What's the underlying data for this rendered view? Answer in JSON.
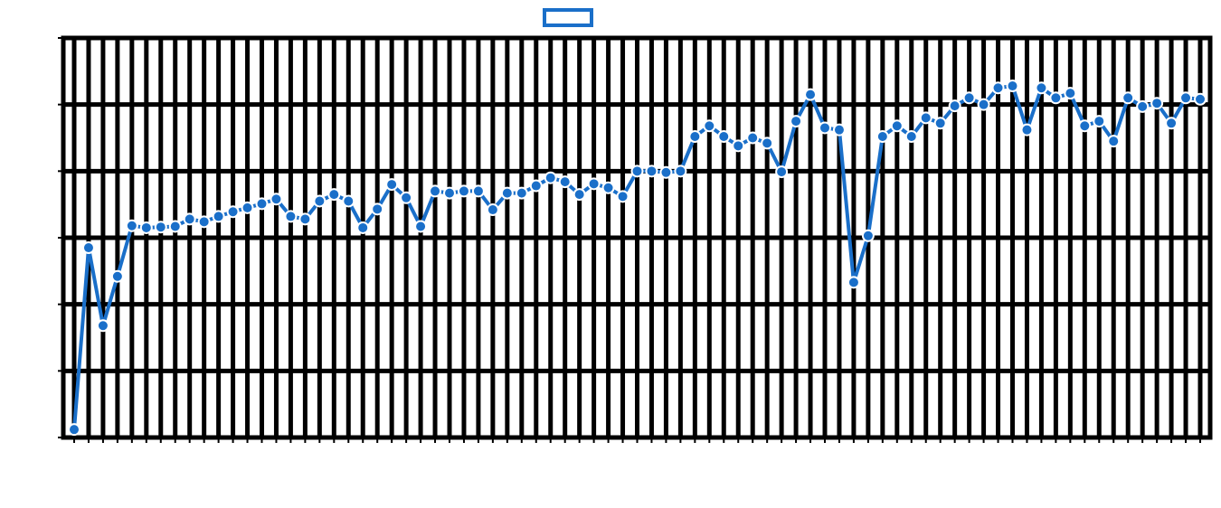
{
  "chart_data": {
    "type": "line",
    "title": "",
    "xlabel": "",
    "ylabel": "",
    "ylim": [
      0,
      6
    ],
    "y_ticks": [
      0,
      1,
      2,
      3,
      4,
      5,
      6
    ],
    "y_tick_labels": [
      "",
      "",
      "",
      "",
      "",
      "",
      ""
    ],
    "x_tick_labels": [
      "",
      "",
      "",
      "",
      "",
      "",
      "",
      "",
      "",
      "",
      "",
      "",
      "",
      "",
      "",
      "",
      "",
      "",
      "",
      "",
      "",
      "",
      "",
      "",
      "",
      "",
      "",
      "",
      "",
      "",
      "",
      "",
      "",
      "",
      "",
      "",
      "",
      "",
      "",
      "",
      "",
      "",
      "",
      "",
      "",
      "",
      "",
      "",
      "",
      "",
      "",
      "",
      "",
      "",
      "",
      "",
      "",
      "",
      "",
      "",
      "",
      "",
      "",
      "",
      "",
      "",
      "",
      "",
      "",
      "",
      "",
      "",
      "",
      "",
      "",
      "",
      "",
      "",
      "",
      ""
    ],
    "grid": true,
    "legend_position": "top-center",
    "series": [
      {
        "color": "#1a6fc9",
        "values": [
          0.12,
          2.85,
          1.68,
          2.42,
          3.18,
          3.15,
          3.16,
          3.17,
          3.28,
          3.24,
          3.32,
          3.39,
          3.45,
          3.51,
          3.58,
          3.32,
          3.28,
          3.55,
          3.65,
          3.55,
          3.15,
          3.43,
          3.8,
          3.6,
          3.17,
          3.7,
          3.67,
          3.7,
          3.7,
          3.42,
          3.67,
          3.67,
          3.78,
          3.9,
          3.84,
          3.65,
          3.81,
          3.75,
          3.62,
          4.0,
          4.0,
          3.98,
          4.0,
          4.52,
          4.68,
          4.52,
          4.38,
          4.5,
          4.42,
          3.99,
          4.75,
          5.15,
          4.65,
          4.62,
          2.33,
          3.03,
          4.52,
          4.68,
          4.52,
          4.8,
          4.72,
          4.98,
          5.1,
          5.0,
          5.25,
          5.28,
          4.62,
          5.25,
          5.1,
          5.17,
          4.68,
          4.75,
          4.45,
          5.1,
          4.97,
          5.02,
          4.72,
          5.1,
          5.08
        ]
      }
    ]
  }
}
